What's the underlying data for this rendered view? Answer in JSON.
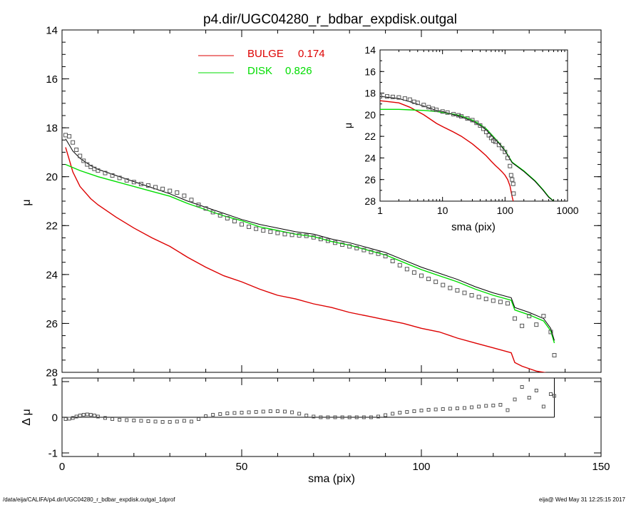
{
  "title": "p4.dir/UGC04280_r_bdbar_expdisk.outgal",
  "footer": {
    "left": "/data/eija/CALIFA/p4.dir/UGC04280_r_bdbar_expdisk.outgal_1dprof",
    "right": "eija@  Wed May 31 12:25:15 2017"
  },
  "legend": {
    "bulge_label": "BULGE",
    "bulge_value": "0.174",
    "disk_label": "DISK",
    "disk_value": "0.826"
  },
  "colors": {
    "bulge": "#dd0000",
    "disk": "#00dd00",
    "total": "#000000",
    "data": "#555555"
  },
  "chart_data": [
    {
      "type": "line",
      "panel": "main",
      "xlabel": "sma (pix)",
      "ylabel": "μ",
      "xlim": [
        0,
        150
      ],
      "ylim": [
        28,
        14
      ],
      "y_inverted": true,
      "xticks": [
        0,
        50,
        100,
        150
      ],
      "yticks": [
        14,
        16,
        18,
        20,
        22,
        24,
        26,
        28
      ],
      "series": [
        {
          "name": "BULGE",
          "x": [
            1,
            2,
            3,
            5,
            8,
            10,
            15,
            20,
            25,
            30,
            35,
            40,
            45,
            50,
            55,
            60,
            65,
            70,
            75,
            80,
            85,
            90,
            95,
            100,
            105,
            110,
            115,
            120,
            125,
            126,
            128,
            130,
            132,
            134,
            136,
            137
          ],
          "y": [
            18.8,
            19.3,
            19.8,
            20.4,
            20.9,
            21.15,
            21.65,
            22.1,
            22.5,
            22.85,
            23.3,
            23.7,
            24.05,
            24.3,
            24.6,
            24.85,
            25.0,
            25.2,
            25.35,
            25.55,
            25.7,
            25.85,
            26.0,
            26.2,
            26.35,
            26.6,
            26.8,
            27.0,
            27.2,
            27.6,
            27.75,
            27.85,
            27.95,
            28.0,
            28.05,
            28.1
          ]
        },
        {
          "name": "DISK",
          "x": [
            1,
            5,
            10,
            15,
            20,
            25,
            30,
            35,
            40,
            45,
            50,
            55,
            60,
            65,
            70,
            75,
            80,
            85,
            90,
            95,
            100,
            105,
            110,
            115,
            120,
            125,
            126,
            130,
            134,
            136,
            137
          ],
          "y": [
            19.5,
            19.75,
            20.0,
            20.2,
            20.4,
            20.6,
            20.8,
            21.1,
            21.35,
            21.6,
            21.8,
            22.05,
            22.2,
            22.35,
            22.45,
            22.65,
            22.8,
            23.0,
            23.2,
            23.5,
            23.8,
            24.05,
            24.3,
            24.6,
            24.85,
            25.05,
            25.45,
            25.65,
            25.9,
            26.3,
            26.8
          ]
        },
        {
          "name": "TOTAL",
          "x": [
            1,
            2,
            3,
            5,
            8,
            10,
            15,
            20,
            25,
            30,
            35,
            40,
            45,
            50,
            55,
            60,
            65,
            70,
            75,
            80,
            85,
            90,
            95,
            100,
            105,
            110,
            115,
            120,
            125,
            126,
            130,
            134,
            136,
            137
          ],
          "y": [
            18.45,
            18.7,
            18.95,
            19.25,
            19.55,
            19.7,
            19.95,
            20.2,
            20.45,
            20.7,
            21.0,
            21.25,
            21.5,
            21.75,
            21.95,
            22.1,
            22.25,
            22.35,
            22.55,
            22.7,
            22.9,
            23.1,
            23.4,
            23.7,
            23.95,
            24.2,
            24.5,
            24.75,
            24.95,
            25.35,
            25.55,
            25.8,
            26.2,
            26.7
          ]
        },
        {
          "name": "data",
          "x": [
            1,
            2,
            3,
            4,
            5,
            6,
            7,
            8,
            9,
            10,
            12,
            14,
            16,
            18,
            20,
            22,
            24,
            26,
            28,
            30,
            32,
            34,
            36,
            38,
            40,
            42,
            44,
            46,
            48,
            50,
            52,
            54,
            56,
            58,
            60,
            62,
            64,
            66,
            68,
            70,
            72,
            74,
            76,
            78,
            80,
            82,
            84,
            86,
            88,
            90,
            92,
            94,
            96,
            98,
            100,
            102,
            104,
            106,
            108,
            110,
            112,
            114,
            116,
            118,
            120,
            122,
            124,
            126,
            128,
            130,
            132,
            134,
            136,
            137
          ],
          "y": [
            18.3,
            18.35,
            18.6,
            18.9,
            19.15,
            19.35,
            19.5,
            19.6,
            19.68,
            19.75,
            19.85,
            19.95,
            20.05,
            20.15,
            20.22,
            20.3,
            20.36,
            20.43,
            20.5,
            20.58,
            20.65,
            20.78,
            20.95,
            21.15,
            21.3,
            21.45,
            21.58,
            21.7,
            21.82,
            21.95,
            22.05,
            22.13,
            22.2,
            22.25,
            22.3,
            22.35,
            22.38,
            22.4,
            22.42,
            22.48,
            22.55,
            22.62,
            22.7,
            22.78,
            22.85,
            22.92,
            23.0,
            23.08,
            23.15,
            23.25,
            23.45,
            23.62,
            23.78,
            23.92,
            24.05,
            24.18,
            24.3,
            24.43,
            24.55,
            24.65,
            24.75,
            24.85,
            24.92,
            25.0,
            25.07,
            25.12,
            25.18,
            25.8,
            26.1,
            25.7,
            26.05,
            25.7,
            26.35,
            27.3
          ]
        }
      ]
    },
    {
      "type": "scatter",
      "panel": "residual",
      "ylabel": "Δ μ",
      "xlim": [
        0,
        150
      ],
      "ylim": [
        -1.1,
        1.1
      ],
      "yticks": [
        -1,
        0,
        1
      ],
      "x": [
        1,
        2,
        3,
        4,
        5,
        6,
        7,
        8,
        9,
        10,
        12,
        14,
        16,
        18,
        20,
        22,
        24,
        26,
        28,
        30,
        32,
        34,
        36,
        38,
        40,
        42,
        44,
        46,
        48,
        50,
        52,
        54,
        56,
        58,
        60,
        62,
        64,
        66,
        68,
        70,
        72,
        74,
        76,
        78,
        80,
        82,
        84,
        86,
        88,
        90,
        92,
        94,
        96,
        98,
        100,
        102,
        104,
        106,
        108,
        110,
        112,
        114,
        116,
        118,
        120,
        122,
        124,
        126,
        128,
        130,
        132,
        134,
        136,
        137
      ],
      "y": [
        -0.05,
        -0.04,
        -0.02,
        0.02,
        0.05,
        0.07,
        0.08,
        0.07,
        0.05,
        0.02,
        -0.02,
        -0.05,
        -0.07,
        -0.08,
        -0.09,
        -0.1,
        -0.11,
        -0.12,
        -0.13,
        -0.13,
        -0.12,
        -0.1,
        -0.12,
        -0.05,
        0.03,
        0.07,
        0.09,
        0.11,
        0.12,
        0.13,
        0.14,
        0.15,
        0.16,
        0.17,
        0.17,
        0.16,
        0.14,
        0.1,
        0.05,
        0.02,
        0.0,
        0.0,
        0.0,
        0.0,
        0.0,
        0.0,
        0.0,
        0.0,
        0.02,
        0.06,
        0.1,
        0.13,
        0.15,
        0.17,
        0.19,
        0.21,
        0.22,
        0.23,
        0.24,
        0.25,
        0.26,
        0.28,
        0.3,
        0.32,
        0.33,
        0.35,
        0.2,
        0.5,
        0.85,
        0.55,
        0.75,
        0.3,
        0.65,
        0.6
      ]
    },
    {
      "type": "line",
      "panel": "inset",
      "xlabel": "sma (pix)",
      "ylabel": "μ",
      "xscale": "log",
      "xlim": [
        1,
        1000
      ],
      "ylim": [
        28,
        14
      ],
      "y_inverted": true,
      "xticks": [
        1,
        10,
        100,
        1000
      ],
      "yticks": [
        14,
        16,
        18,
        20,
        22,
        24,
        26,
        28
      ],
      "series": [
        {
          "name": "BULGE",
          "x": [
            1,
            2,
            3,
            5,
            8,
            10,
            15,
            20,
            30,
            40,
            50,
            60,
            70,
            80,
            90,
            100,
            110,
            120,
            125,
            130,
            135
          ],
          "y": [
            18.7,
            18.9,
            19.3,
            20.0,
            20.8,
            21.1,
            21.6,
            22.0,
            22.7,
            23.3,
            23.8,
            24.3,
            24.7,
            25.0,
            25.3,
            25.6,
            26.0,
            26.6,
            27.1,
            27.6,
            28.0
          ]
        },
        {
          "name": "DISK",
          "x": [
            1,
            2,
            3,
            5,
            8,
            10,
            15,
            20,
            30,
            40,
            50,
            60,
            80,
            100,
            130,
            200,
            300,
            400,
            500,
            600
          ],
          "y": [
            19.5,
            19.5,
            19.55,
            19.6,
            19.7,
            19.8,
            19.95,
            20.1,
            20.5,
            20.9,
            21.3,
            21.8,
            22.6,
            23.3,
            24.4,
            25.2,
            26.1,
            26.9,
            27.6,
            28.0
          ]
        },
        {
          "name": "TOTAL",
          "x": [
            1,
            2,
            3,
            5,
            8,
            10,
            15,
            20,
            30,
            40,
            50,
            60,
            80,
            100,
            130,
            200,
            300,
            400,
            500,
            600
          ],
          "y": [
            18.3,
            18.5,
            18.8,
            19.2,
            19.6,
            19.7,
            20.0,
            20.2,
            20.6,
            21.0,
            21.4,
            21.9,
            22.65,
            23.35,
            24.45,
            25.25,
            26.15,
            26.95,
            27.65,
            28.0
          ]
        },
        {
          "name": "data",
          "x": [
            1,
            1.3,
            1.6,
            2,
            2.5,
            3,
            3.5,
            4,
            5,
            6,
            7,
            8,
            10,
            12,
            15,
            18,
            20,
            25,
            30,
            35,
            40,
            45,
            50,
            55,
            60,
            65,
            70,
            80,
            90,
            100,
            110,
            120,
            125,
            130,
            135,
            137
          ],
          "y": [
            18.3,
            18.3,
            18.35,
            18.4,
            18.5,
            18.6,
            18.8,
            18.9,
            19.1,
            19.3,
            19.45,
            19.55,
            19.7,
            19.8,
            19.95,
            20.05,
            20.15,
            20.35,
            20.5,
            20.75,
            21.0,
            21.3,
            21.6,
            21.9,
            22.15,
            22.4,
            22.5,
            22.8,
            23.1,
            23.45,
            24.0,
            24.75,
            25.6,
            26.0,
            26.4,
            27.3
          ]
        }
      ]
    }
  ]
}
